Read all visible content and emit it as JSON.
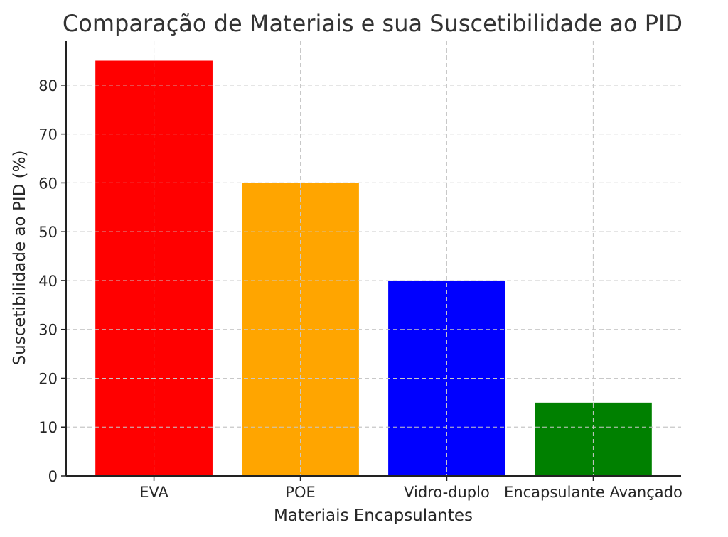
{
  "chart_data": {
    "type": "bar",
    "title": "Comparação de Materiais e sua Suscetibilidade ao PID",
    "xlabel": "Materiais Encapsulantes",
    "ylabel": "Suscetibilidade ao PID (%)",
    "categories": [
      "EVA",
      "POE",
      "Vidro-duplo",
      "Encapsulante Avançado"
    ],
    "values": [
      85,
      60,
      40,
      15
    ],
    "colors": [
      "#ff0000",
      "#ffa500",
      "#0000ff",
      "#008000"
    ],
    "ylim": [
      0,
      89
    ],
    "yticks": [
      0,
      10,
      20,
      30,
      40,
      50,
      60,
      70,
      80
    ],
    "grid": true
  }
}
